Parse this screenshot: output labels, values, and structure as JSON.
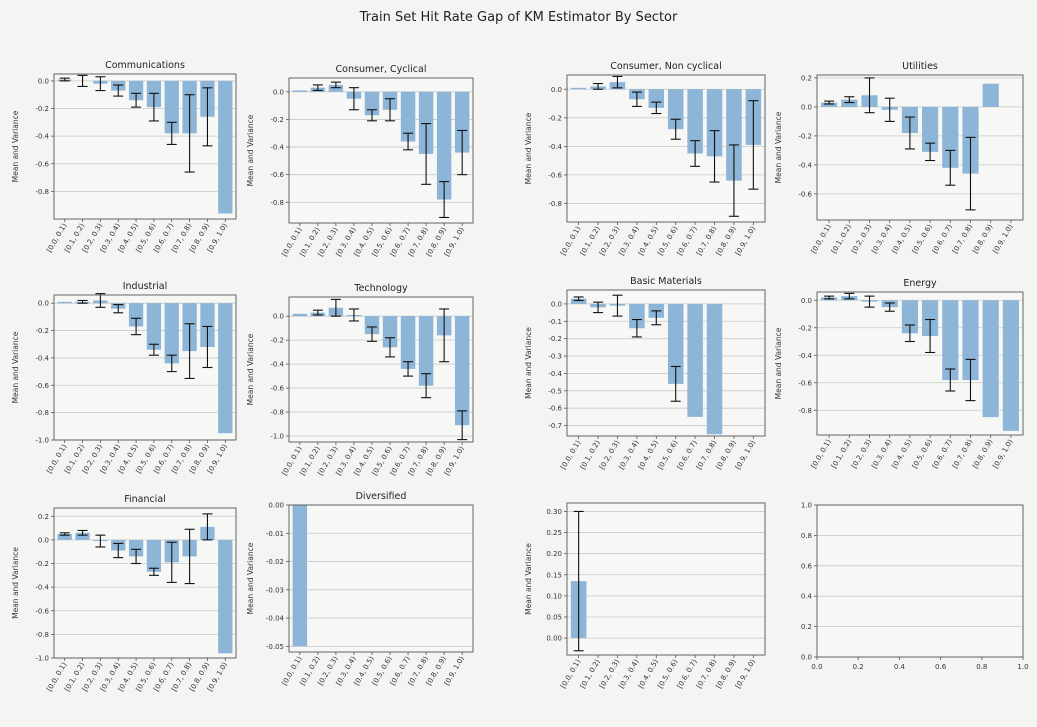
{
  "figure": {
    "title": "Train Set Hit Rate Gap of KM Estimator By Sector"
  },
  "colors": {
    "bar": "#8db5d8",
    "grid": "#c8c8c8",
    "axes": "#555555",
    "error": "#111111",
    "panel": "#f7f7f6"
  },
  "chart_data": [
    {
      "type": "bar",
      "title": "Communications",
      "ylabel": "Mean and Variance",
      "ylim": [
        -1.0,
        0.05
      ],
      "yticks": [
        0.0,
        -0.2,
        -0.4,
        -0.6,
        -0.8
      ],
      "ytick_labels": [
        "0.0",
        "-0.2",
        "-0.4",
        "-0.6",
        "-0.8"
      ],
      "categories": [
        "[0.0, 0.1)",
        "[0.1, 0.2)",
        "[0.2, 0.3)",
        "[0.3, 0.4)",
        "[0.4, 0.5)",
        "[0.5, 0.6)",
        "[0.6, 0.7)",
        "[0.7, 0.8)",
        "[0.8, 0.9)",
        "[0.9, 1.0)"
      ],
      "values": [
        0.01,
        0.0,
        -0.02,
        -0.07,
        -0.14,
        -0.19,
        -0.38,
        -0.38,
        -0.26,
        -0.96
      ],
      "errors": [
        0.01,
        0.04,
        0.05,
        0.04,
        0.05,
        0.1,
        0.08,
        0.28,
        0.21,
        0.0
      ]
    },
    {
      "type": "bar",
      "title": "Consumer, Cyclical",
      "ylabel": "Mean and Variance",
      "ylim": [
        -0.95,
        0.1
      ],
      "yticks": [
        0.0,
        -0.2,
        -0.4,
        -0.6,
        -0.8
      ],
      "ytick_labels": [
        "0.0",
        "-0.2",
        "-0.4",
        "-0.6",
        "-0.8"
      ],
      "categories": [
        "[0.0, 0.1)",
        "[0.1, 0.2)",
        "[0.2, 0.3)",
        "[0.3, 0.4)",
        "[0.4, 0.5)",
        "[0.5, 0.6)",
        "[0.6, 0.7)",
        "[0.7, 0.8)",
        "[0.8, 0.9)",
        "[0.9, 1.0)"
      ],
      "values": [
        0.01,
        0.03,
        0.05,
        -0.05,
        -0.17,
        -0.13,
        -0.36,
        -0.45,
        -0.78,
        -0.44
      ],
      "errors": [
        0.0,
        0.02,
        0.02,
        0.08,
        0.04,
        0.08,
        0.06,
        0.22,
        0.13,
        0.16
      ]
    },
    {
      "type": "bar",
      "title": "Consumer, Non cyclical",
      "ylabel": "Mean and Variance",
      "ylim": [
        -0.93,
        0.1
      ],
      "yticks": [
        0.0,
        -0.2,
        -0.4,
        -0.6,
        -0.8
      ],
      "ytick_labels": [
        "0.0",
        "-0.2",
        "-0.4",
        "-0.6",
        "-0.8"
      ],
      "categories": [
        "[0.0, 0.1)",
        "[0.1, 0.2)",
        "[0.2, 0.3)",
        "[0.3, 0.4)",
        "[0.4, 0.5)",
        "[0.5, 0.6)",
        "[0.6, 0.7)",
        "[0.7, 0.8)",
        "[0.8, 0.9)",
        "[0.9, 1.0)"
      ],
      "values": [
        0.01,
        0.02,
        0.05,
        -0.07,
        -0.13,
        -0.28,
        -0.45,
        -0.47,
        -0.64,
        -0.39
      ],
      "errors": [
        0.0,
        0.02,
        0.04,
        0.05,
        0.04,
        0.07,
        0.09,
        0.18,
        0.25,
        0.31
      ]
    },
    {
      "type": "bar",
      "title": "Utilities",
      "ylabel": "Mean and Variance",
      "ylim": [
        -0.78,
        0.22
      ],
      "yticks": [
        0.2,
        0.0,
        -0.2,
        -0.4,
        -0.6
      ],
      "ytick_labels": [
        "0.2",
        "0.0",
        "-0.2",
        "-0.4",
        "-0.6"
      ],
      "categories": [
        "[0.0, 0.1)",
        "[0.1, 0.2)",
        "[0.2, 0.3)",
        "[0.3, 0.4)",
        "[0.4, 0.5)",
        "[0.5, 0.6)",
        "[0.6, 0.7)",
        "[0.7, 0.8)",
        "[0.8, 0.9)",
        "[0.9, 1.0)"
      ],
      "values": [
        0.03,
        0.05,
        0.08,
        -0.02,
        -0.18,
        -0.31,
        -0.42,
        -0.46,
        0.16,
        0.0
      ],
      "errors": [
        0.01,
        0.02,
        0.12,
        0.08,
        0.11,
        0.06,
        0.12,
        0.25,
        0.0,
        0.0
      ]
    },
    {
      "type": "bar",
      "title": "Industrial",
      "ylabel": "Mean and Variance",
      "ylim": [
        -1.0,
        0.06
      ],
      "yticks": [
        0.0,
        -0.2,
        -0.4,
        -0.6,
        -0.8,
        -1.0
      ],
      "ytick_labels": [
        "0.0",
        "-0.2",
        "-0.4",
        "-0.6",
        "-0.8",
        "-1.0"
      ],
      "categories": [
        "[0.0, 0.1)",
        "[0.1, 0.2)",
        "[0.2, 0.3)",
        "[0.3, 0.4)",
        "[0.4, 0.5)",
        "[0.5, 0.6)",
        "[0.6, 0.7)",
        "[0.7, 0.8)",
        "[0.8, 0.9)",
        "[0.9, 1.0)"
      ],
      "values": [
        0.01,
        0.01,
        0.02,
        -0.04,
        -0.17,
        -0.34,
        -0.44,
        -0.35,
        -0.32,
        -0.95
      ],
      "errors": [
        0.0,
        0.01,
        0.05,
        0.03,
        0.06,
        0.04,
        0.06,
        0.2,
        0.15,
        0.0
      ]
    },
    {
      "type": "bar",
      "title": "Technology",
      "ylabel": "Mean and Variance",
      "ylim": [
        -1.05,
        0.16
      ],
      "yticks": [
        0.0,
        -0.2,
        -0.4,
        -0.6,
        -0.8,
        -1.0
      ],
      "ytick_labels": [
        "0.0",
        "-0.2",
        "-0.4",
        "-0.6",
        "-0.8",
        "-1.0"
      ],
      "categories": [
        "[0.0, 0.1)",
        "[0.1, 0.2)",
        "[0.2, 0.3)",
        "[0.3, 0.4)",
        "[0.4, 0.5)",
        "[0.5, 0.6)",
        "[0.6, 0.7)",
        "[0.7, 0.8)",
        "[0.8, 0.9)",
        "[0.9, 1.0)"
      ],
      "values": [
        0.02,
        0.03,
        0.07,
        0.01,
        -0.15,
        -0.26,
        -0.44,
        -0.58,
        -0.16,
        -0.91
      ],
      "errors": [
        0.0,
        0.02,
        0.07,
        0.05,
        0.06,
        0.08,
        0.06,
        0.1,
        0.22,
        0.12
      ]
    },
    {
      "type": "bar",
      "title": "Basic Materials",
      "ylabel": "Mean and Variance",
      "ylim": [
        -0.76,
        0.08
      ],
      "yticks": [
        0.0,
        -0.1,
        -0.2,
        -0.3,
        -0.4,
        -0.5,
        -0.6,
        -0.7
      ],
      "ytick_labels": [
        "0.0",
        "-0.1",
        "-0.2",
        "-0.3",
        "-0.4",
        "-0.5",
        "-0.6",
        "-0.7"
      ],
      "categories": [
        "[0.0, 0.1)",
        "[0.1, 0.2)",
        "[0.2, 0.3)",
        "[0.3, 0.4)",
        "[0.4, 0.5)",
        "[0.5, 0.6)",
        "[0.6, 0.7)",
        "[0.7, 0.8)",
        "[0.8, 0.9)",
        "[0.9, 1.0)"
      ],
      "values": [
        0.03,
        -0.02,
        -0.01,
        -0.14,
        -0.08,
        -0.46,
        -0.65,
        -0.75,
        0.0,
        0.0
      ],
      "errors": [
        0.01,
        0.03,
        0.06,
        0.05,
        0.04,
        0.1,
        0.0,
        0.0,
        0.0,
        0.0
      ]
    },
    {
      "type": "bar",
      "title": "Energy",
      "ylabel": "Mean and Variance",
      "ylim": [
        -0.98,
        0.06
      ],
      "yticks": [
        0.0,
        -0.2,
        -0.4,
        -0.6,
        -0.8
      ],
      "ytick_labels": [
        "0.0",
        "-0.2",
        "-0.4",
        "-0.6",
        "-0.8"
      ],
      "categories": [
        "[0.0, 0.1)",
        "[0.1, 0.2)",
        "[0.2, 0.3)",
        "[0.3, 0.4)",
        "[0.4, 0.5)",
        "[0.5, 0.6)",
        "[0.6, 0.7)",
        "[0.7, 0.8)",
        "[0.8, 0.9)",
        "[0.9, 1.0)"
      ],
      "values": [
        0.02,
        0.03,
        -0.01,
        -0.05,
        -0.24,
        -0.26,
        -0.58,
        -0.58,
        -0.85,
        -0.95
      ],
      "errors": [
        0.01,
        0.02,
        0.04,
        0.03,
        0.06,
        0.12,
        0.08,
        0.15,
        0.0,
        0.0
      ]
    },
    {
      "type": "bar",
      "title": "Financial",
      "ylabel": "Mean and Variance",
      "ylim": [
        -1.0,
        0.27
      ],
      "yticks": [
        0.2,
        0.0,
        -0.2,
        -0.4,
        -0.6,
        -0.8,
        -1.0
      ],
      "ytick_labels": [
        "0.2",
        "0.0",
        "-0.2",
        "-0.4",
        "-0.6",
        "-0.8",
        "-1.0"
      ],
      "categories": [
        "[0.0, 0.1)",
        "[0.1, 0.2)",
        "[0.2, 0.3)",
        "[0.3, 0.4)",
        "[0.4, 0.5)",
        "[0.5, 0.6)",
        "[0.6, 0.7)",
        "[0.7, 0.8)",
        "[0.8, 0.9)",
        "[0.9, 1.0)"
      ],
      "values": [
        0.05,
        0.06,
        -0.01,
        -0.09,
        -0.14,
        -0.27,
        -0.19,
        -0.14,
        0.11,
        -0.96
      ],
      "errors": [
        0.01,
        0.02,
        0.05,
        0.06,
        0.06,
        0.03,
        0.17,
        0.23,
        0.11,
        0.0
      ]
    },
    {
      "type": "bar",
      "title": "Diversified",
      "ylabel": "Mean and Variance",
      "ylim": [
        -0.052,
        0.0
      ],
      "yticks": [
        0.0,
        -0.01,
        -0.02,
        -0.03,
        -0.04,
        -0.05
      ],
      "ytick_labels": [
        "0.00",
        "-0.01",
        "-0.02",
        "-0.03",
        "-0.04",
        "-0.05"
      ],
      "categories": [
        "[0.0, 0.1)",
        "[0.1, 0.2)",
        "[0.2, 0.3)",
        "[0.3, 0.4)",
        "[0.4, 0.5)",
        "[0.5, 0.6)",
        "[0.6, 0.7)",
        "[0.7, 0.8)",
        "[0.8, 0.9)",
        "[0.9, 1.0)"
      ],
      "values": [
        -0.05,
        0,
        0,
        0,
        0,
        0,
        0,
        0,
        0,
        0
      ],
      "errors": [
        0,
        0,
        0,
        0,
        0,
        0,
        0,
        0,
        0,
        0
      ]
    },
    {
      "type": "bar",
      "title": "",
      "ylabel": "Mean and Variance",
      "ylim": [
        -0.04,
        0.32
      ],
      "yticks": [
        0.3,
        0.25,
        0.2,
        0.15,
        0.1,
        0.05,
        0.0
      ],
      "ytick_labels": [
        "0.30",
        "0.25",
        "0.20",
        "0.15",
        "0.10",
        "0.05",
        "0.00"
      ],
      "categories": [
        "[0.0, 0.1)",
        "[0.1, 0.2)",
        "[0.2, 0.3)",
        "[0.3, 0.4)",
        "[0.4, 0.5)",
        "[0.5, 0.6)",
        "[0.6, 0.7)",
        "[0.7, 0.8)",
        "[0.8, 0.9)",
        "[0.9, 1.0)"
      ],
      "values": [
        0.135,
        0,
        0,
        0,
        0,
        0,
        0,
        0,
        0,
        0
      ],
      "errors": [
        0.165,
        0,
        0,
        0,
        0,
        0,
        0,
        0,
        0,
        0
      ]
    },
    {
      "type": "empty",
      "title": "",
      "xlim": [
        0.0,
        1.0
      ],
      "ylim": [
        0.0,
        1.0
      ],
      "xticks": [
        0.0,
        0.2,
        0.4,
        0.6,
        0.8,
        1.0
      ],
      "xtick_labels": [
        "0.0",
        "0.2",
        "0.4",
        "0.6",
        "0.8",
        "1.0"
      ],
      "yticks": [
        0.0,
        0.2,
        0.4,
        0.6,
        0.8,
        1.0
      ],
      "ytick_labels": [
        "0.0",
        "0.2",
        "0.4",
        "0.6",
        "0.8",
        "1.0"
      ]
    }
  ]
}
